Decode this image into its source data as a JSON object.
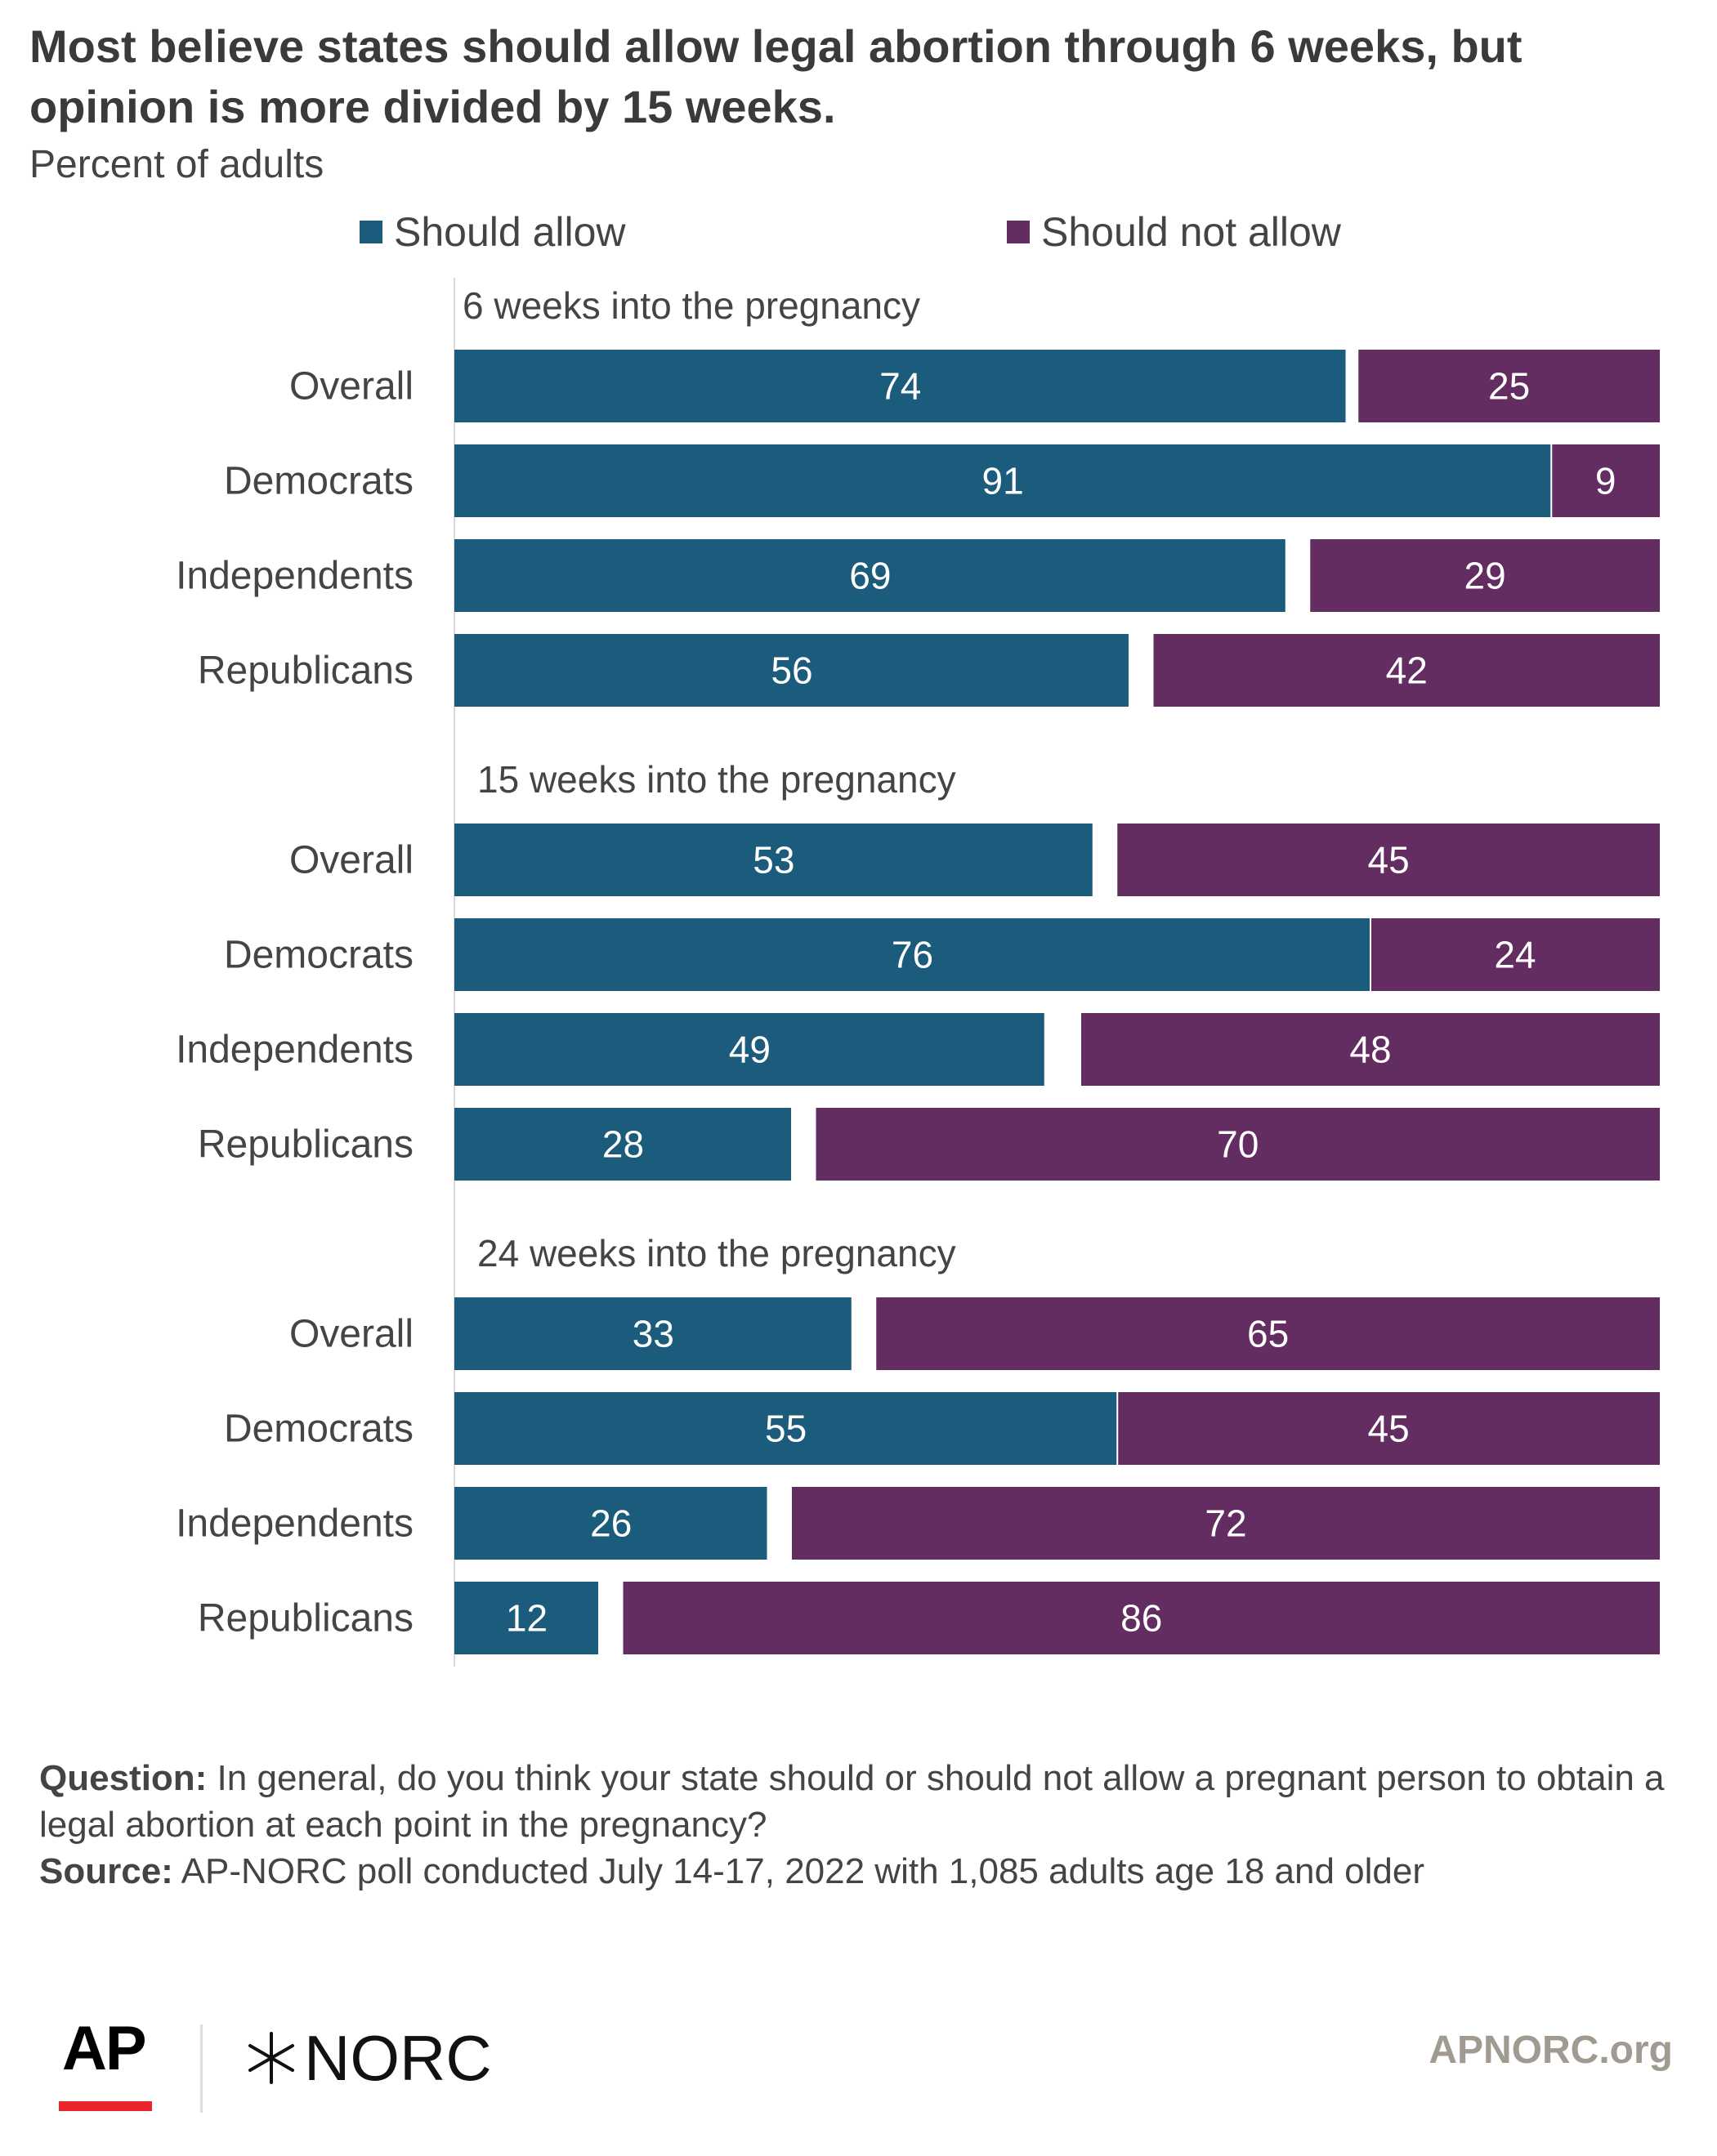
{
  "header": {
    "title": "Most believe states should allow legal abortion through 6 weeks, but opinion is more divided by 15 weeks.",
    "subtitle": "Percent of adults"
  },
  "legend": {
    "allow_label": "Should allow",
    "not_allow_label": "Should not allow"
  },
  "colors": {
    "allow": "#1b5b7c",
    "not_allow": "#642d62",
    "axis_line": "#d9d9d9",
    "label_text": "#444444"
  },
  "chart_data": {
    "type": "bar",
    "orientation": "horizontal",
    "stacked": true,
    "title": "Most believe states should allow legal abortion through 6 weeks, but opinion is more divided by 15 weeks.",
    "subtitle": "Percent of adults",
    "xlim": [
      0,
      100
    ],
    "legend_position": "top",
    "series_names": [
      "Should allow",
      "Should not allow"
    ],
    "groups": [
      {
        "label": "6 weeks into the pregnancy",
        "categories": [
          "Overall",
          "Democrats",
          "Independents",
          "Republicans"
        ],
        "series": [
          {
            "name": "Should allow",
            "values": [
              74,
              91,
              69,
              56
            ]
          },
          {
            "name": "Should not allow",
            "values": [
              25,
              9,
              29,
              42
            ]
          }
        ]
      },
      {
        "label": "15 weeks into the pregnancy",
        "categories": [
          "Overall",
          "Democrats",
          "Independents",
          "Republicans"
        ],
        "series": [
          {
            "name": "Should allow",
            "values": [
              53,
              76,
              49,
              28
            ]
          },
          {
            "name": "Should not allow",
            "values": [
              45,
              24,
              48,
              70
            ]
          }
        ]
      },
      {
        "label": "24 weeks into the pregnancy",
        "categories": [
          "Overall",
          "Democrats",
          "Independents",
          "Republicans"
        ],
        "series": [
          {
            "name": "Should allow",
            "values": [
              33,
              55,
              26,
              12
            ]
          },
          {
            "name": "Should not allow",
            "values": [
              65,
              45,
              72,
              86
            ]
          }
        ]
      }
    ]
  },
  "footnote": {
    "question_label": "Question:",
    "question_text": " In general, do you think your state should or should not allow a pregnant person to obtain a legal abortion at each point in the pregnancy?",
    "source_label": "Source:",
    "source_text": " AP-NORC poll conducted July 14-17, 2022 with 1,085 adults age 18 and older"
  },
  "branding": {
    "ap_logo": "AP",
    "norc_logo": "NORC",
    "norc_icon": "norc-star-icon",
    "site": "APNORC.org"
  }
}
